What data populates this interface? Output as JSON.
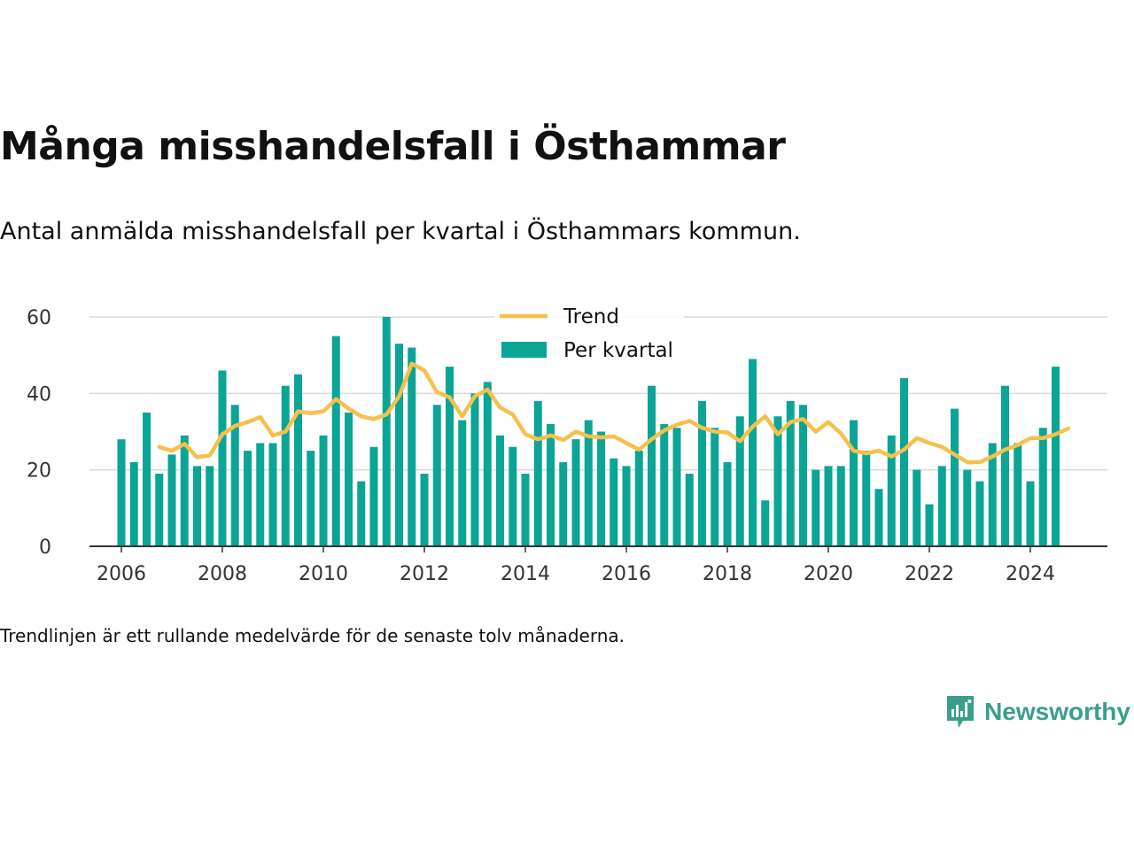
{
  "header": {
    "title": "Många misshandelsfall i Östhammar",
    "subtitle": "Antal anmälda misshandelsfall per kvartal i Östhammars kommun."
  },
  "footer": {
    "note": "Trendlinjen är ett rullande medelvärde för de senaste tolv månaderna.",
    "brand": "Newsworthy"
  },
  "colors": {
    "bar": "#0aa596",
    "trend": "#f5c04c",
    "grid": "#d9d9d9",
    "axis": "#333333",
    "brand": "#3a9e8c"
  },
  "chart_data": {
    "type": "bar",
    "x_unit": "year",
    "x_start": 2006.0,
    "x_step": 0.25,
    "xlim": [
      2005.0,
      2025.6
    ],
    "ylim": [
      0,
      60
    ],
    "y_ticks": [
      0,
      20,
      40,
      60
    ],
    "x_ticks": [
      2006,
      2008,
      2010,
      2012,
      2014,
      2016,
      2018,
      2020,
      2022,
      2024
    ],
    "grid": true,
    "legend_position": "top",
    "series": [
      {
        "name": "Per kvartal",
        "kind": "bar",
        "values": [
          28,
          22,
          35,
          19,
          24,
          29,
          21,
          21,
          46,
          37,
          25,
          27,
          27,
          42,
          45,
          25,
          29,
          55,
          35,
          17,
          26,
          60,
          53,
          52,
          19,
          37,
          47,
          33,
          40,
          43,
          29,
          26,
          19,
          38,
          32,
          22,
          28,
          33,
          30,
          23,
          21,
          25,
          42,
          32,
          31,
          19,
          38,
          31,
          22,
          34,
          49,
          12,
          34,
          38,
          37,
          20,
          21,
          21,
          33,
          25,
          15,
          29,
          44,
          20,
          11,
          21,
          36,
          20,
          17,
          27,
          42,
          27,
          17,
          31,
          47
        ]
      },
      {
        "name": "Trend",
        "kind": "line",
        "start_index": 3,
        "values": [
          26.0,
          25.0,
          26.8,
          23.3,
          23.8,
          29.3,
          31.5,
          32.5,
          33.8,
          29.0,
          30.0,
          35.3,
          34.8,
          35.3,
          38.5,
          36.0,
          34.0,
          33.3,
          34.5,
          39.3,
          47.8,
          46.0,
          40.3,
          39.0,
          34.0,
          39.3,
          41.0,
          36.3,
          34.5,
          29.3,
          28.0,
          29.0,
          27.8,
          30.0,
          28.8,
          28.5,
          28.8,
          27.0,
          25.3,
          28.0,
          30.3,
          31.8,
          32.8,
          31.0,
          30.0,
          29.8,
          27.5,
          31.3,
          34.0,
          29.3,
          32.5,
          33.3,
          30.0,
          32.5,
          29.5,
          25.0,
          24.3,
          25.0,
          23.5,
          25.3,
          28.3,
          27.0,
          26.0,
          24.0,
          22.0,
          22.0,
          23.5,
          25.3,
          26.5,
          28.3,
          28.3,
          29.3,
          30.8
        ]
      }
    ]
  }
}
